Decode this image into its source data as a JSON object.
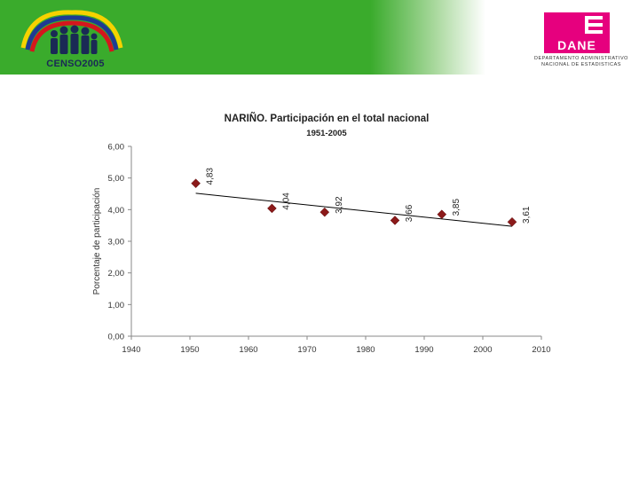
{
  "header": {
    "censo_logo_text": "CENSO2005",
    "dane_logo_text": "DANE",
    "dane_caption_line1": "DEPARTAMENTO ADMINISTRATIVO",
    "dane_caption_line2": "NACIONAL DE ESTADISTICAS",
    "colors": {
      "banner_green": "#3aab2c",
      "dane_magenta": "#e6007e"
    }
  },
  "chart_data": {
    "type": "scatter",
    "title": "NARIÑO. Participación en el total nacional",
    "subtitle": "1951-2005",
    "xlabel": "",
    "ylabel": "Porcentaje de participación",
    "xlim": [
      1940,
      2010
    ],
    "ylim": [
      0,
      6
    ],
    "xticks": [
      1940,
      1950,
      1960,
      1970,
      1980,
      1990,
      2000,
      2010
    ],
    "yticks": [
      0,
      1,
      2,
      3,
      4,
      5,
      6
    ],
    "ytick_labels": [
      "0,00",
      "1,00",
      "2,00",
      "3,00",
      "4,00",
      "5,00",
      "6,00"
    ],
    "grid": false,
    "legend": "none",
    "marker": "diamond",
    "marker_color": "#8b1a1a",
    "trendline": {
      "type": "linear",
      "color": "#000000",
      "x_start": 1951,
      "x_end": 2005
    },
    "points": [
      {
        "x": 1951,
        "y": 4.83,
        "label": "4,83"
      },
      {
        "x": 1964,
        "y": 4.04,
        "label": "4,04"
      },
      {
        "x": 1973,
        "y": 3.92,
        "label": "3,92"
      },
      {
        "x": 1985,
        "y": 3.66,
        "label": "3,66"
      },
      {
        "x": 1993,
        "y": 3.85,
        "label": "3,85"
      },
      {
        "x": 2005,
        "y": 3.61,
        "label": "3,61"
      }
    ]
  }
}
